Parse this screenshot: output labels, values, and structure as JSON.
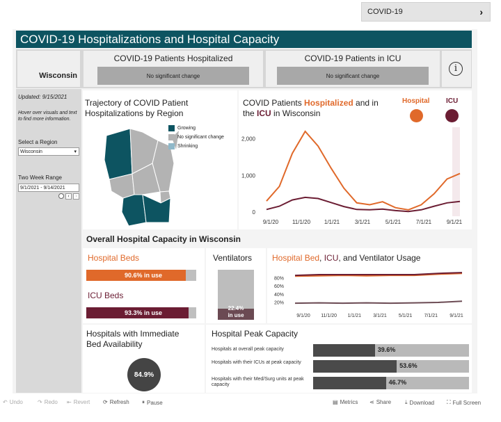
{
  "topnav": {
    "label": "COVID-19"
  },
  "title": "COVID-19 Hospitalizations and Hospital Capacity",
  "header": {
    "region": "Wisconsin",
    "hosp_title": "COVID-19 Patients Hospitalized",
    "hosp_status": "No significant change",
    "icu_title": "COVID-19 Patients in ICU",
    "icu_status": "No significant change",
    "info_icon": "i"
  },
  "sidebar": {
    "updated": "Updated: 9/15/2021",
    "hint": "Hover over visuals and text to find more information.",
    "region_label": "Select a Region",
    "region_value": "Wisconsin",
    "range_label": "Two Week Range",
    "range_value": "9/1/2021 - 9/14/2021"
  },
  "trajectory": {
    "title_line1": "Trajectory of COVID Patient",
    "title_line2": "Hospitalizations by Region",
    "legend": [
      {
        "label": "Growing",
        "color": "#0d5461"
      },
      {
        "label": "No significant change",
        "color": "#b3b3b3"
      },
      {
        "label": "Shrinking",
        "color": "#8fb8c9"
      }
    ]
  },
  "trend": {
    "title_a": "COVID Patients ",
    "title_b": "Hospitalized",
    "title_c": " and in",
    "title_d": "the ",
    "title_e": "ICU",
    "title_f": " in Wisconsin",
    "legend_hosp": "Hospital",
    "legend_icu": "ICU",
    "yticks": [
      "2,000",
      "1,000",
      "0"
    ],
    "xticks": [
      "9/1/20",
      "11/1/20",
      "1/1/21",
      "3/1/21",
      "5/1/21",
      "7/1/21",
      "9/1/21"
    ]
  },
  "capacity": {
    "title": "Overall Hospital Capacity in Wisconsin",
    "beds_label": "Hospital Beds",
    "beds_value": "90.6% in use",
    "icu_label": "ICU Beds",
    "icu_value": "93.3% in use",
    "vent_label": "Ventilators",
    "vent_value_line1": "22.4%",
    "vent_value_line2": "in use",
    "usage_title_a": "Hospital Bed",
    "usage_title_b": ", ",
    "usage_title_c": "ICU",
    "usage_title_d": ", and Ventilator Usage",
    "usage_yticks": [
      "80%",
      "60%",
      "40%",
      "20%"
    ],
    "usage_xticks": [
      "9/1/20",
      "11/1/20",
      "1/1/21",
      "3/1/21",
      "5/1/21",
      "7/1/21",
      "9/1/21"
    ]
  },
  "availability": {
    "title_line1": "Hospitals with Immediate",
    "title_line2": "Bed Availability",
    "value": "84.9%"
  },
  "peak": {
    "title": "Hospital Peak Capacity",
    "rows": [
      {
        "label": "Hospitals at overall peak capacity",
        "value": "39.6%",
        "frac": 0.396
      },
      {
        "label": "Hospitals with their ICUs at peak capacity",
        "value": "53.6%",
        "frac": 0.536
      },
      {
        "label": "Hospitals with their Med/Surg units at peak capacity",
        "value": "46.7%",
        "frac": 0.467
      }
    ]
  },
  "toolbar": {
    "undo": "Undo",
    "redo": "Redo",
    "revert": "Revert",
    "refresh": "Refresh",
    "pause": "Pause",
    "metrics": "Metrics",
    "share": "Share",
    "download": "Download",
    "fullscreen": "Full Screen"
  },
  "chart_data": [
    {
      "type": "line",
      "title": "COVID Patients Hospitalized and in the ICU in Wisconsin",
      "x": [
        "9/1/20",
        "10/1/20",
        "11/1/20",
        "11/15/20",
        "12/1/20",
        "1/1/21",
        "2/1/21",
        "3/1/21",
        "4/1/21",
        "5/1/21",
        "6/1/21",
        "7/1/21",
        "8/1/21",
        "8/15/21",
        "9/1/21",
        "9/14/21"
      ],
      "series": [
        {
          "name": "Hospital",
          "color": "#e0692a",
          "values": [
            300,
            700,
            1600,
            2200,
            1800,
            1200,
            650,
            250,
            200,
            280,
            120,
            60,
            200,
            500,
            900,
            1050
          ]
        },
        {
          "name": "ICU",
          "color": "#6b1d33",
          "values": [
            70,
            160,
            330,
            400,
            370,
            260,
            150,
            70,
            60,
            80,
            40,
            15,
            60,
            160,
            250,
            290
          ]
        }
      ],
      "ylim": [
        0,
        2200
      ],
      "yticks": [
        0,
        1000,
        2000
      ]
    },
    {
      "type": "line",
      "title": "Hospital Bed, ICU, and Ventilator Usage",
      "x": [
        "9/1/20",
        "11/1/20",
        "1/1/21",
        "3/1/21",
        "5/1/21",
        "7/1/21",
        "9/1/21",
        "9/14/21"
      ],
      "series": [
        {
          "name": "Hospital Bed",
          "color": "#e0692a",
          "values": [
            84,
            85,
            86,
            85,
            86,
            86,
            89,
            91
          ]
        },
        {
          "name": "ICU",
          "color": "#6b1d33",
          "values": [
            86,
            88,
            88,
            88,
            88,
            88,
            91,
            93
          ]
        },
        {
          "name": "Ventilator",
          "color": "#6b4a53",
          "values": [
            17,
            18,
            17,
            18,
            17,
            18,
            19,
            22
          ]
        }
      ],
      "ylim": [
        0,
        100
      ],
      "yticks": [
        20,
        40,
        60,
        80
      ]
    },
    {
      "type": "bar",
      "title": "Hospital Peak Capacity",
      "categories": [
        "Hospitals at overall peak capacity",
        "Hospitals with their ICUs at peak capacity",
        "Hospitals with their Med/Surg units at peak capacity"
      ],
      "values": [
        39.6,
        53.6,
        46.7
      ]
    }
  ]
}
